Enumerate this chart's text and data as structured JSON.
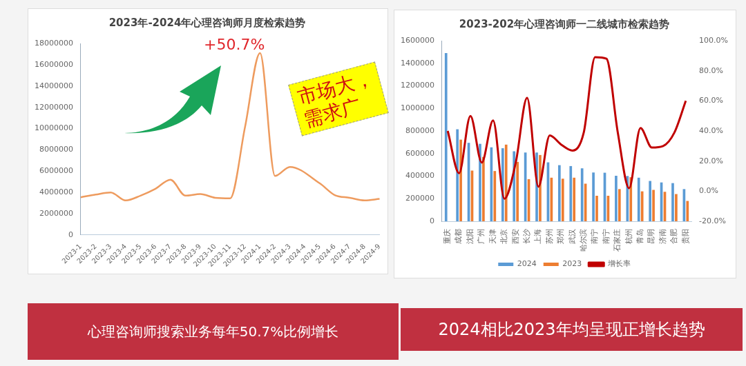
{
  "chart_data": [
    {
      "type": "line",
      "title": "2023年-2024年心理咨询师月度检索趋势",
      "categories": [
        "2023-1",
        "2023-2",
        "2023-3",
        "2023-4",
        "2023-5",
        "2023-6",
        "2023-7",
        "2023-8",
        "2023-9",
        "2023-10",
        "2023-11",
        "2023-12",
        "2024-1",
        "2024-2",
        "2024-3",
        "2024-4",
        "2024-5",
        "2024-6",
        "2024-7",
        "2024-8",
        "2024-9"
      ],
      "series": [
        {
          "color": "#ee9b5e",
          "values": [
            3550000,
            3800000,
            4000000,
            3250000,
            3700000,
            4350000,
            5200000,
            3700000,
            3850000,
            3500000,
            3450000,
            10200000,
            17100000,
            5550000,
            6400000,
            null,
            4850000,
            3750000,
            3500000,
            3250000,
            3400000
          ]
        }
      ],
      "ylim": [
        0,
        18000000
      ],
      "yticks": [
        0,
        2000000,
        4000000,
        6000000,
        8000000,
        10000000,
        12000000,
        14000000,
        16000000,
        18000000
      ],
      "grid": false,
      "legend": false,
      "marker": "none",
      "annotations": [
        "+50.7%",
        "心理咨询师搜索业务每年50.7%比例增长"
      ]
    },
    {
      "type": "bar",
      "title": "2023-202年心理咨询师一二线城市检索趋势",
      "categories": [
        "重庆",
        "成都",
        "沈阳",
        "广州",
        "天津",
        "北京",
        "西安",
        "长沙",
        "上海",
        "苏州",
        "郑州",
        "武汉",
        "哈尔滨",
        "南宁",
        "南宁",
        "石家庄",
        "杭州",
        "青岛",
        "昆明",
        "济南",
        "合肥",
        "贵阳"
      ],
      "series": [
        {
          "name": "2024",
          "color": "#5b9bd5",
          "values": [
            1490000,
            815000,
            695000,
            686000,
            655000,
            647000,
            620000,
            609000,
            609000,
            522000,
            497000,
            489000,
            469000,
            432000,
            430000,
            403000,
            401000,
            386000,
            357000,
            344000,
            338000,
            285000
          ]
        },
        {
          "name": "2023",
          "color": "#ed7d31",
          "values": [
            null,
            723000,
            449000,
            570000,
            445000,
            679000,
            526000,
            373000,
            587000,
            386000,
            377000,
            386000,
            333000,
            226000,
            226000,
            285000,
            390000,
            265000,
            278000,
            261000,
            241000,
            180000
          ]
        },
        {
          "name": "增长率",
          "type": "line",
          "axis": "y2",
          "color": "#c00000",
          "values": [
            40,
            12,
            50,
            19,
            47,
            -5,
            19,
            62,
            3,
            37,
            31,
            27,
            39,
            89,
            88,
            39,
            2,
            42,
            29,
            30,
            39,
            60
          ]
        }
      ],
      "ylim": [
        0,
        1600000
      ],
      "yticks": [
        0,
        200000,
        400000,
        600000,
        800000,
        1000000,
        1200000,
        1400000,
        1600000
      ],
      "y2lim": [
        -20,
        100
      ],
      "y2ticks": [
        {
          "value": -20,
          "label": "-20.0%"
        },
        {
          "value": 0,
          "label": "0.0%"
        },
        {
          "value": 20,
          "label": "20.0%"
        },
        {
          "value": 40,
          "label": "40.0%"
        },
        {
          "value": 60,
          "label": "60.0%"
        },
        {
          "value": 80,
          "label": "80.0%"
        },
        {
          "value": 100,
          "label": "100.0%"
        }
      ],
      "grid": false,
      "legend": "bottom",
      "marker": "none",
      "annotations": [
        "市场大，需求广",
        "2024相比2023年均呈现正增长趋势"
      ]
    }
  ]
}
